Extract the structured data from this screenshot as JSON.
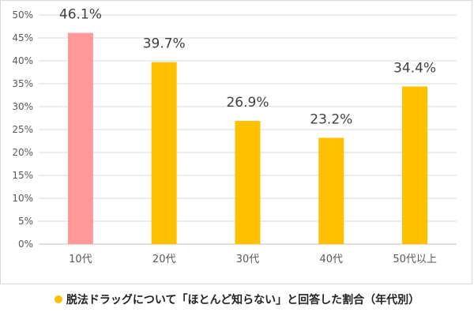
{
  "chart_data": {
    "type": "bar",
    "categories": [
      "10代",
      "20代",
      "30代",
      "40代",
      "50代以上"
    ],
    "series": [
      {
        "name": "脱法ドラッグについて「ほとんど知らない」と回答した割合（年代別）",
        "values": [
          46.1,
          39.7,
          26.9,
          23.2,
          34.4
        ],
        "value_labels": [
          "46.1%",
          "39.7%",
          "26.9%",
          "23.2%",
          "34.4%"
        ],
        "color": "#FFC000"
      }
    ],
    "highlight": {
      "index": 0,
      "color": "#FF999A"
    },
    "ylim": [
      0,
      50
    ],
    "yticks": [
      0,
      5,
      10,
      15,
      20,
      25,
      30,
      35,
      40,
      45,
      50
    ],
    "ytick_labels": [
      "0%",
      "5%",
      "10%",
      "15%",
      "20%",
      "25%",
      "30%",
      "35%",
      "40%",
      "45%",
      "50%"
    ],
    "grid": true,
    "legend_position": "bottom",
    "title": "",
    "xlabel": "",
    "ylabel": ""
  },
  "colors": {
    "grid": "#d9d9d9",
    "axis": "#bfbfbf"
  }
}
